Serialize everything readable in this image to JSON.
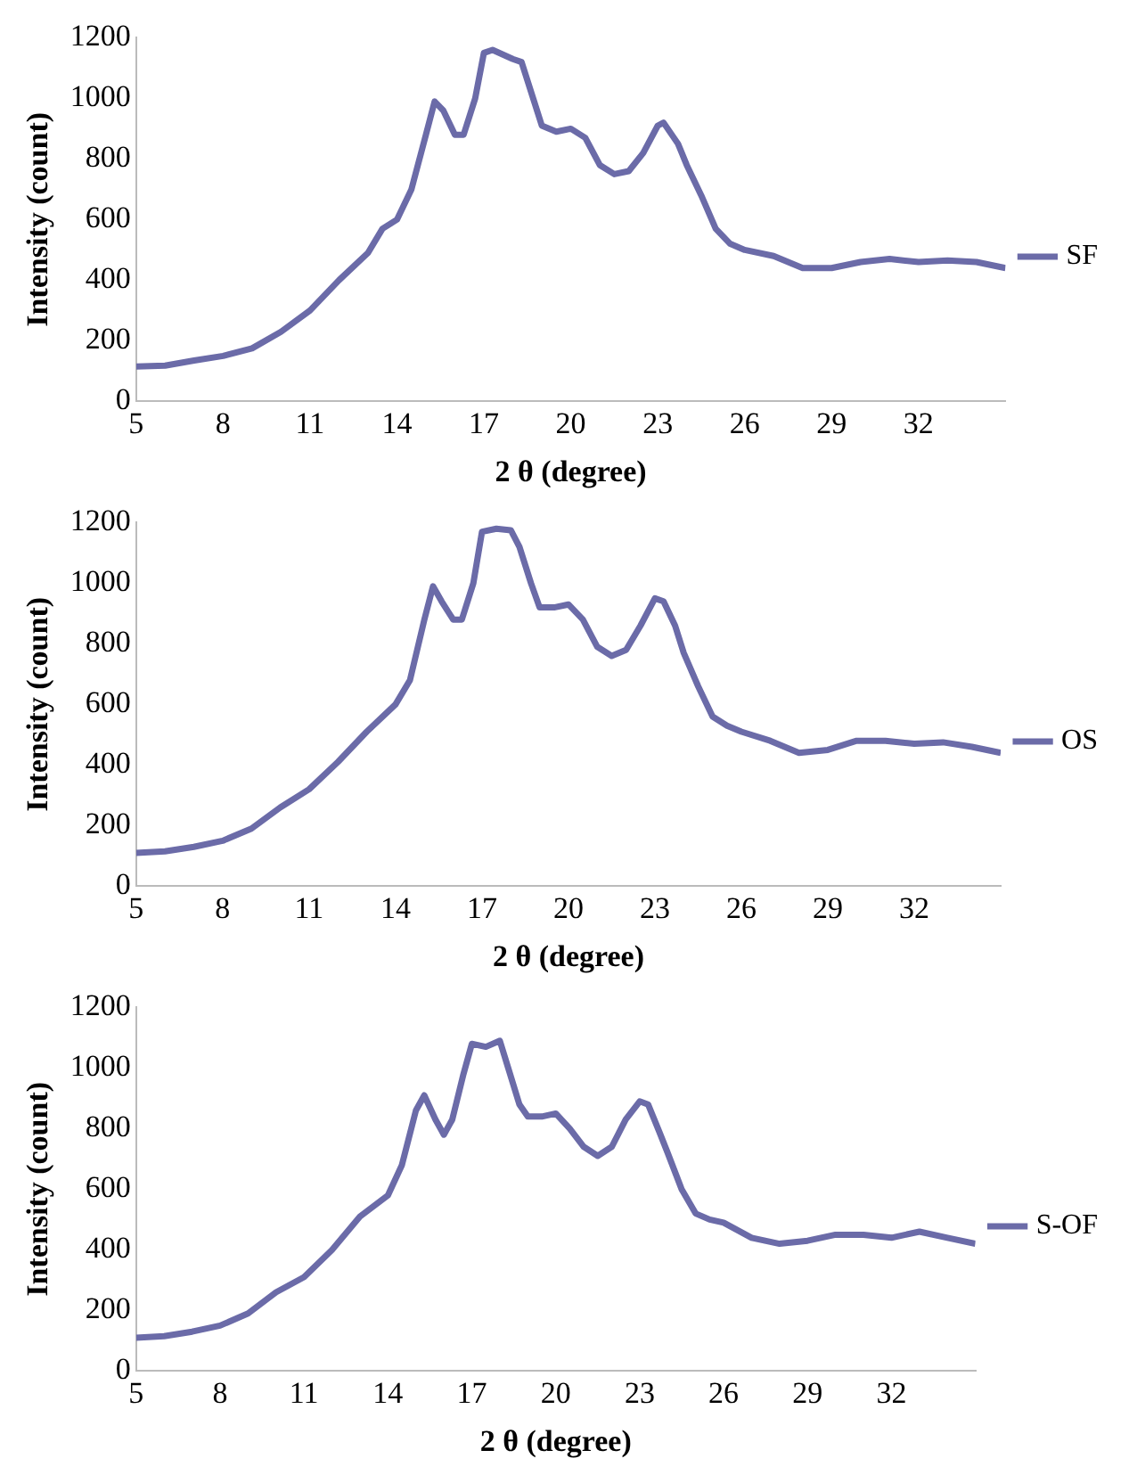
{
  "chart_data": [
    {
      "type": "line",
      "xlabel": "2 θ (degree)",
      "ylabel": "Intensity (count)",
      "legend": "right",
      "grid": false,
      "xlim": [
        5,
        35
      ],
      "xticks": [
        5,
        8,
        11,
        14,
        17,
        20,
        23,
        26,
        29,
        32
      ],
      "ylim": [
        0,
        1200
      ],
      "yticks": [
        0,
        200,
        400,
        600,
        800,
        1000,
        1200
      ],
      "x": [
        5,
        6,
        7,
        8,
        9,
        10,
        11,
        12,
        13,
        13.5,
        14,
        14.5,
        15,
        15.3,
        15.6,
        16,
        16.3,
        16.7,
        17,
        17.3,
        18,
        18.3,
        18.7,
        19,
        19.5,
        20,
        20.5,
        21,
        21.5,
        22,
        22.5,
        23,
        23.2,
        23.7,
        24,
        24.5,
        25,
        25.5,
        26,
        27,
        28,
        29,
        30,
        31,
        32,
        33,
        34,
        35
      ],
      "series": [
        {
          "name": "SF",
          "color": "#6b6ba8",
          "values": [
            115,
            118,
            135,
            150,
            175,
            230,
            300,
            400,
            490,
            570,
            600,
            700,
            880,
            990,
            960,
            880,
            880,
            1000,
            1150,
            1160,
            1130,
            1120,
            1000,
            910,
            890,
            900,
            870,
            780,
            750,
            760,
            820,
            910,
            920,
            850,
            780,
            680,
            570,
            520,
            500,
            480,
            440,
            440,
            460,
            470,
            460,
            465,
            460,
            440
          ]
        }
      ]
    },
    {
      "type": "line",
      "xlabel": "2 θ (degree)",
      "ylabel": "Intensity (count)",
      "legend": "right",
      "grid": false,
      "xlim": [
        5,
        35
      ],
      "xticks": [
        5,
        8,
        11,
        14,
        17,
        20,
        23,
        26,
        29,
        32
      ],
      "ylim": [
        0,
        1200
      ],
      "yticks": [
        0,
        200,
        400,
        600,
        800,
        1000,
        1200
      ],
      "x": [
        5,
        6,
        7,
        8,
        9,
        10,
        11,
        12,
        13,
        14,
        14.5,
        15,
        15.3,
        15.6,
        16,
        16.3,
        16.7,
        17,
        17.5,
        18,
        18.3,
        18.7,
        19,
        19.5,
        20,
        20.5,
        21,
        21.5,
        22,
        22.5,
        23,
        23.3,
        23.7,
        24,
        24.5,
        25,
        25.5,
        26,
        27,
        28,
        29,
        30,
        31,
        32,
        33,
        34,
        35
      ],
      "series": [
        {
          "name": "OS",
          "color": "#6b6ba8",
          "values": [
            110,
            115,
            130,
            150,
            190,
            260,
            320,
            410,
            510,
            600,
            680,
            880,
            990,
            940,
            880,
            880,
            1000,
            1170,
            1180,
            1175,
            1120,
            1000,
            920,
            920,
            930,
            880,
            790,
            760,
            780,
            860,
            950,
            940,
            860,
            770,
            660,
            560,
            530,
            510,
            480,
            440,
            450,
            480,
            480,
            470,
            475,
            460,
            440
          ]
        }
      ]
    },
    {
      "type": "line",
      "xlabel": "2 θ (degree)",
      "ylabel": "Intensity (count)",
      "legend": "right",
      "grid": false,
      "xlim": [
        5,
        35
      ],
      "xticks": [
        5,
        8,
        11,
        14,
        17,
        20,
        23,
        26,
        29,
        32
      ],
      "ylim": [
        0,
        1200
      ],
      "yticks": [
        0,
        200,
        400,
        600,
        800,
        1000,
        1200
      ],
      "x": [
        5,
        6,
        7,
        8,
        9,
        10,
        11,
        12,
        13,
        14,
        14.5,
        15,
        15.3,
        15.7,
        16,
        16.3,
        16.7,
        17,
        17.5,
        18,
        18.3,
        18.7,
        19,
        19.5,
        20,
        20.5,
        21,
        21.5,
        22,
        22.5,
        23,
        23.3,
        23.7,
        24,
        24.5,
        25,
        25.5,
        26,
        27,
        28,
        29,
        30,
        31,
        32,
        33,
        34,
        35
      ],
      "series": [
        {
          "name": "S-OF",
          "color": "#6b6ba8",
          "values": [
            110,
            115,
            130,
            150,
            190,
            260,
            310,
            400,
            510,
            580,
            680,
            860,
            910,
            830,
            780,
            830,
            980,
            1080,
            1070,
            1090,
            1000,
            880,
            840,
            840,
            850,
            800,
            740,
            710,
            740,
            830,
            890,
            880,
            790,
            720,
            600,
            520,
            500,
            490,
            440,
            420,
            430,
            450,
            450,
            440,
            460,
            440,
            420
          ]
        }
      ]
    }
  ]
}
